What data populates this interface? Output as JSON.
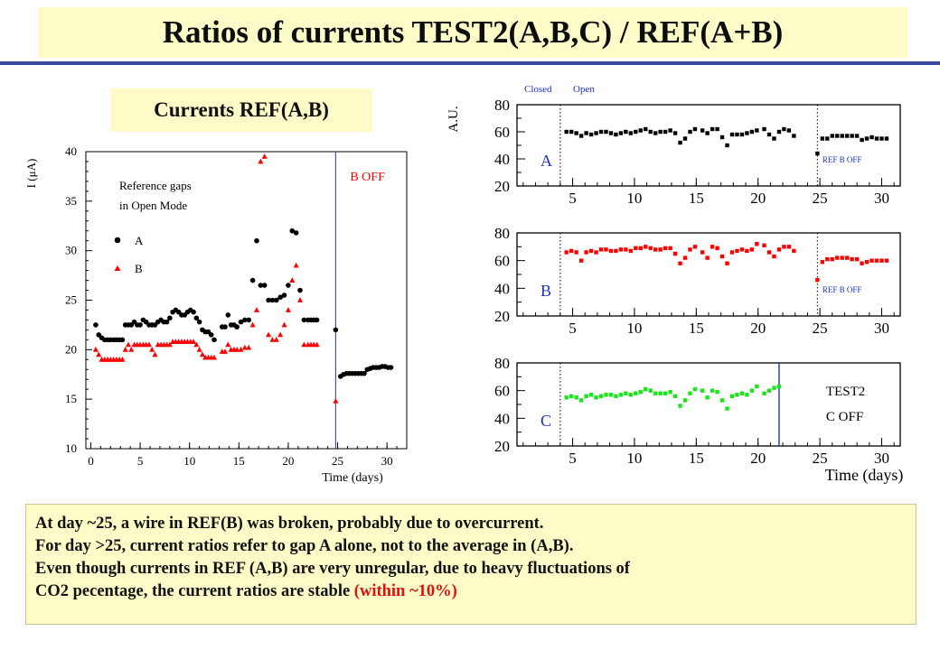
{
  "header": {
    "title": "Ratios of currents TEST2(A,B,C) / REF(A+B)"
  },
  "subheader": {
    "title": "Currents REF(A,B)"
  },
  "notes": {
    "line1": "At day ~25, a wire in REF(B) was broken, probably due to overcurrent.",
    "line2": "For day >25, current ratios refer to gap A alone, not to the average in (A,B).",
    "line3": "Even though currents in REF (A,B) are very unregular, due to heavy fluctuations of",
    "line4_main": "CO2 pecentage, the current ratios are stable ",
    "line4_highlight": "(within ~10%)"
  },
  "colors": {
    "title_bg": "#fdfcc8",
    "rule": "#3b4aa3",
    "highlight": "#e01010",
    "black": "#000000",
    "red": "#ff0000",
    "green": "#19e619",
    "blue": "#1a2fd0"
  },
  "chart_data": [
    {
      "type": "scatter",
      "ylabel": "I (μA)",
      "xlabel": "Time (days)",
      "xlim": [
        -0.5,
        32
      ],
      "ylim": [
        10,
        40
      ],
      "xticks": [
        0,
        5,
        10,
        15,
        20,
        25,
        30
      ],
      "yticks": [
        10,
        15,
        20,
        25,
        30,
        35,
        40
      ],
      "legend_title": [
        "Reference gaps",
        "in Open Mode"
      ],
      "annotation": "B OFF",
      "vline_x": 24.8,
      "series": [
        {
          "name": "A",
          "marker": "circle",
          "color": "#000000",
          "x": [
            0.5,
            0.8,
            1.1,
            1.4,
            1.7,
            2,
            2.3,
            2.6,
            2.9,
            3.2,
            3.5,
            3.8,
            4.1,
            4.4,
            4.7,
            5,
            5.3,
            5.6,
            5.9,
            6.2,
            6.5,
            6.8,
            7.1,
            7.4,
            7.7,
            8,
            8.3,
            8.6,
            8.9,
            9.2,
            9.5,
            9.8,
            10.1,
            10.4,
            10.7,
            11,
            11.3,
            11.6,
            11.9,
            12.2,
            12.5,
            13.3,
            13.6,
            13.9,
            14.2,
            14.5,
            14.8,
            15.2,
            15.6,
            16,
            16.4,
            16.8,
            17.2,
            17.6,
            18,
            18.4,
            18.8,
            19.2,
            19.6,
            20,
            20.4,
            20.8,
            21.2,
            21.6,
            22,
            22.3,
            22.6,
            22.9,
            24.8,
            25.3,
            25.6,
            25.9,
            26.2,
            26.5,
            26.8,
            27.1,
            27.4,
            27.7,
            28,
            28.3,
            28.6,
            28.9,
            29.2,
            29.5,
            29.8,
            30.1,
            30.4
          ],
          "y": [
            22.5,
            21.5,
            21.2,
            21,
            21,
            21,
            21,
            21,
            21,
            21,
            22.5,
            22.5,
            22.5,
            22.8,
            22.5,
            22.5,
            23,
            22.8,
            22.5,
            22.5,
            22.5,
            22.8,
            23,
            22.8,
            22.8,
            23.2,
            23.8,
            24,
            23.8,
            23.5,
            23.5,
            23.8,
            24,
            23.8,
            23.2,
            22.8,
            22,
            21.8,
            21.8,
            21.5,
            21,
            22.3,
            22.3,
            23.5,
            22.5,
            22.5,
            22.3,
            22.8,
            23,
            23,
            27,
            31,
            26.5,
            26.5,
            25,
            25,
            25,
            25.3,
            25.5,
            26.5,
            32,
            31.8,
            26,
            23,
            23,
            23,
            23,
            23,
            22,
            17.3,
            17.5,
            17.6,
            17.6,
            17.6,
            17.6,
            17.6,
            17.6,
            17.6,
            18,
            18.1,
            18.2,
            18.2,
            18.2,
            18.3,
            18.3,
            18.2,
            18.2
          ]
        },
        {
          "name": "B",
          "marker": "triangle",
          "color": "#ff0000",
          "x": [
            0.5,
            0.8,
            1.1,
            1.4,
            1.7,
            2,
            2.3,
            2.6,
            2.9,
            3.2,
            3.5,
            3.8,
            4.1,
            4.4,
            4.7,
            5,
            5.3,
            5.6,
            5.9,
            6.2,
            6.5,
            6.8,
            7.1,
            7.4,
            7.7,
            8,
            8.3,
            8.6,
            8.9,
            9.2,
            9.5,
            9.8,
            10.1,
            10.4,
            10.7,
            11,
            11.3,
            11.6,
            11.9,
            12.2,
            12.5,
            13.3,
            13.6,
            13.9,
            14.2,
            14.5,
            14.8,
            15.2,
            15.6,
            16,
            16.4,
            16.8,
            17.2,
            17.6,
            18,
            18.4,
            18.8,
            19.2,
            19.6,
            20,
            20.4,
            20.8,
            21.2,
            21.6,
            22,
            22.3,
            22.6,
            22.9,
            24.8
          ],
          "y": [
            20,
            19.5,
            19,
            19,
            19,
            19,
            19,
            19,
            19,
            19,
            20,
            20.5,
            20,
            20.5,
            20.5,
            20.5,
            20.5,
            20.5,
            20.5,
            20,
            19.5,
            20.5,
            20.5,
            20.5,
            20.5,
            20.5,
            20.8,
            20.8,
            20.8,
            20.8,
            20.8,
            20.8,
            20.8,
            20.8,
            20.5,
            20,
            19.5,
            19.2,
            19.2,
            19.2,
            19.2,
            19.8,
            19.8,
            20.5,
            20,
            20,
            20,
            20,
            20.2,
            20.2,
            22.5,
            24,
            39,
            39.5,
            21.5,
            21,
            21,
            21.5,
            22.5,
            24,
            27,
            28.5,
            25,
            20.5,
            20.5,
            20.5,
            20.5,
            20.5,
            14.8
          ]
        }
      ]
    },
    {
      "type": "scatter",
      "ylabel": "A.U.",
      "xlabel": "Time (days)",
      "xlim": [
        0.5,
        31.5
      ],
      "header_labels": [
        "Closed",
        "Open"
      ],
      "panels": [
        {
          "panel": "A",
          "ylim": [
            20,
            80
          ],
          "yticks": [
            20,
            40,
            60,
            80
          ],
          "color": "#000000",
          "note": "REF B OFF",
          "vline_x": 24.8,
          "x": [
            4.5,
            4.9,
            5.3,
            5.7,
            6.1,
            6.5,
            6.9,
            7.3,
            7.7,
            8.1,
            8.5,
            8.9,
            9.3,
            9.7,
            10.1,
            10.5,
            10.9,
            11.3,
            11.7,
            12.1,
            12.5,
            12.9,
            13.3,
            13.7,
            14.1,
            14.5,
            14.9,
            15.5,
            15.9,
            16.3,
            16.7,
            17.1,
            17.5,
            17.9,
            18.3,
            18.7,
            19.1,
            19.5,
            19.9,
            20.5,
            20.9,
            21.3,
            21.7,
            22.1,
            22.5,
            22.9,
            24.8,
            25.2,
            25.6,
            26,
            26.4,
            26.8,
            27.2,
            27.6,
            28,
            28.4,
            28.8,
            29.2,
            29.6,
            30,
            30.4
          ],
          "y": [
            60,
            60,
            59,
            57,
            59,
            58,
            59,
            60,
            60,
            59,
            58,
            59,
            60,
            59,
            60,
            61,
            62,
            60,
            59,
            60,
            60,
            61,
            59,
            52,
            55,
            60,
            62,
            61,
            59,
            62,
            62,
            56,
            50,
            58,
            58,
            58,
            59,
            60,
            61,
            62,
            58,
            55,
            60,
            62,
            61,
            57,
            44,
            55,
            55,
            57,
            57,
            57,
            57,
            57,
            57,
            54,
            55,
            56,
            55,
            55,
            55
          ]
        },
        {
          "panel": "B",
          "ylim": [
            20,
            80
          ],
          "yticks": [
            20,
            40,
            60,
            80
          ],
          "color": "#ff0000",
          "note": "REF B OFF",
          "vline_x": 24.8,
          "x": [
            4.5,
            4.9,
            5.3,
            5.7,
            6.1,
            6.5,
            6.9,
            7.3,
            7.7,
            8.1,
            8.5,
            8.9,
            9.3,
            9.7,
            10.1,
            10.5,
            10.9,
            11.3,
            11.7,
            12.1,
            12.5,
            12.9,
            13.3,
            13.7,
            14.1,
            14.5,
            14.9,
            15.5,
            15.9,
            16.3,
            16.7,
            17.1,
            17.5,
            17.9,
            18.3,
            18.7,
            19.1,
            19.5,
            19.9,
            20.5,
            20.9,
            21.3,
            21.7,
            22.1,
            22.5,
            22.9,
            24.8,
            25.2,
            25.6,
            26,
            26.4,
            26.8,
            27.2,
            27.6,
            28,
            28.4,
            28.8,
            29.2,
            29.6,
            30,
            30.4
          ],
          "y": [
            66,
            67,
            66,
            60,
            66,
            67,
            66,
            68,
            68,
            67,
            67,
            68,
            68,
            67,
            69,
            69,
            70,
            69,
            68,
            68,
            69,
            69,
            65,
            58,
            62,
            68,
            70,
            66,
            62,
            70,
            69,
            63,
            58,
            66,
            67,
            68,
            67,
            68,
            72,
            71,
            66,
            63,
            68,
            70,
            70,
            67,
            46,
            59,
            61,
            61,
            62,
            62,
            62,
            61,
            61,
            58,
            59,
            60,
            60,
            60,
            60
          ]
        },
        {
          "panel": "C",
          "ylim": [
            20,
            80
          ],
          "yticks": [
            20,
            40,
            60,
            80
          ],
          "color": "#19e619",
          "note_lines": [
            "TEST2",
            "C OFF"
          ],
          "vline_x": 21.7,
          "x": [
            4.5,
            4.9,
            5.3,
            5.7,
            6.1,
            6.5,
            6.9,
            7.3,
            7.7,
            8.1,
            8.5,
            8.9,
            9.3,
            9.7,
            10.1,
            10.5,
            10.9,
            11.3,
            11.7,
            12.1,
            12.5,
            12.9,
            13.3,
            13.7,
            14.1,
            14.5,
            14.9,
            15.5,
            15.9,
            16.3,
            16.7,
            17.1,
            17.5,
            17.9,
            18.3,
            18.7,
            19.1,
            19.5,
            19.9,
            20.5,
            20.9,
            21.3,
            21.7
          ],
          "y": [
            55,
            56,
            55,
            53,
            56,
            57,
            55,
            56,
            57,
            57,
            56,
            57,
            58,
            57,
            58,
            59,
            61,
            60,
            58,
            58,
            58,
            59,
            56,
            49,
            53,
            58,
            61,
            60,
            55,
            60,
            59,
            53,
            47,
            56,
            57,
            58,
            57,
            60,
            63,
            58,
            60,
            62,
            63
          ]
        }
      ]
    }
  ]
}
